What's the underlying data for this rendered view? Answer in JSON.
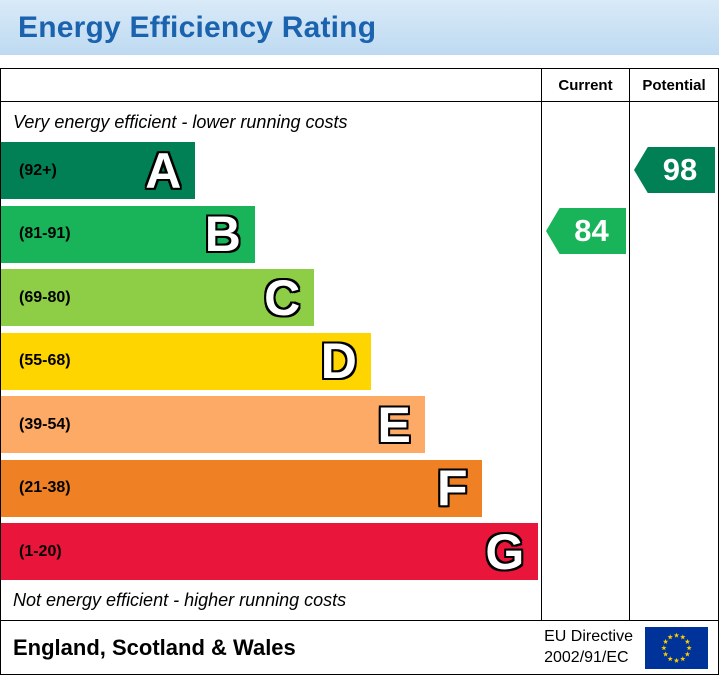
{
  "title": "Energy Efficiency Rating",
  "columns": {
    "current": "Current",
    "potential": "Potential"
  },
  "notes": {
    "top": "Very energy efficient - lower running costs",
    "bottom": "Not energy efficient - higher running costs"
  },
  "bands": [
    {
      "letter": "A",
      "range": "(92+)",
      "color": "#008054",
      "width_pct": 36
    },
    {
      "letter": "B",
      "range": "(81-91)",
      "color": "#19b459",
      "width_pct": 47
    },
    {
      "letter": "C",
      "range": "(69-80)",
      "color": "#8dce46",
      "width_pct": 58
    },
    {
      "letter": "D",
      "range": "(55-68)",
      "color": "#ffd500",
      "width_pct": 68.5
    },
    {
      "letter": "E",
      "range": "(39-54)",
      "color": "#fcaa65",
      "width_pct": 78.5
    },
    {
      "letter": "F",
      "range": "(21-38)",
      "color": "#ef8023",
      "width_pct": 89
    },
    {
      "letter": "G",
      "range": "(1-20)",
      "color": "#e9153b",
      "width_pct": 99.5
    }
  ],
  "current": {
    "value": "84",
    "band": "B",
    "color": "#19b459"
  },
  "potential": {
    "value": "98",
    "band": "A",
    "color": "#008054"
  },
  "footer": {
    "region": "England, Scotland & Wales",
    "directive_line1": "EU Directive",
    "directive_line2": "2002/91/EC"
  },
  "flag_colors": {
    "field": "#003399",
    "stars": "#ffcc00"
  },
  "chart_data": {
    "type": "bar",
    "title": "Energy Efficiency Rating",
    "categories": [
      "A (92+)",
      "B (81-91)",
      "C (69-80)",
      "D (55-68)",
      "E (39-54)",
      "F (21-38)",
      "G (1-20)"
    ],
    "band_colors": [
      "#008054",
      "#19b459",
      "#8dce46",
      "#ffd500",
      "#fcaa65",
      "#ef8023",
      "#e9153b"
    ],
    "band_relative_widths_pct": [
      36,
      47,
      58,
      68.5,
      78.5,
      89,
      99.5
    ],
    "markers": [
      {
        "name": "Current",
        "value": 84,
        "band": "B",
        "color": "#19b459"
      },
      {
        "name": "Potential",
        "value": 98,
        "band": "A",
        "color": "#008054"
      }
    ],
    "annotations": [
      "Very energy efficient - lower running costs",
      "Not energy efficient - higher running costs"
    ],
    "footer": "England, Scotland & Wales | EU Directive 2002/91/EC",
    "legend_position": "none",
    "grid": false
  }
}
